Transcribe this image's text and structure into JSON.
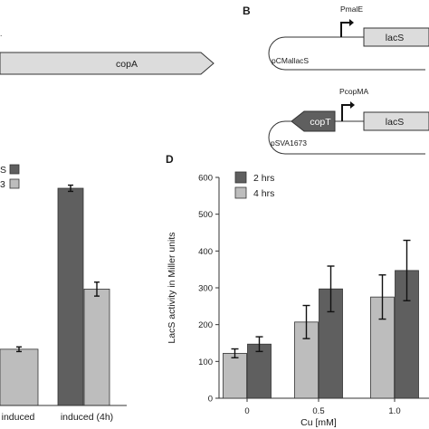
{
  "panels": {
    "a": {
      "gene": "copA"
    },
    "b": {
      "label": "B",
      "construct1": {
        "promoter": "PmalE",
        "gene": "lacS",
        "plasmid": "pCMallacS"
      },
      "construct2": {
        "promoter": "PcopMA",
        "gene_left": "copT",
        "gene_right": "lacS",
        "plasmid": "pSVA1673"
      }
    },
    "c": {
      "legend": [
        "S",
        "3"
      ],
      "categories": [
        "induced",
        "induced (4h)"
      ]
    },
    "d": {
      "label": "D"
    }
  },
  "colors": {
    "dark": "#5f5f5f",
    "light": "#bdbdbd",
    "arrow_fill": "#dcdcdc"
  },
  "chart_data": [
    {
      "panel": "C",
      "type": "bar",
      "categories": [
        "induced",
        "induced (4h)"
      ],
      "series": [
        {
          "name": "S",
          "values": [
            null,
            560
          ]
        },
        {
          "name": "3",
          "values": [
            145,
            300
          ]
        }
      ]
    },
    {
      "panel": "D",
      "type": "bar",
      "categories": [
        "0",
        "0.5",
        "1.0"
      ],
      "xlabel": "Cu [mM]",
      "ylabel": "LacS activity in Miller units",
      "ylim": [
        0,
        600
      ],
      "yticks": [
        "0",
        "100",
        "200",
        "300",
        "400",
        "500",
        "600"
      ],
      "legend": [
        "2 hrs",
        "4 hrs"
      ],
      "series": [
        {
          "name": "4 hrs",
          "values": [
            122,
            207,
            275
          ],
          "errors": [
            12,
            45,
            60
          ]
        },
        {
          "name": "2 hrs",
          "values": [
            147,
            297,
            347
          ],
          "errors": [
            20,
            62,
            82
          ]
        }
      ]
    }
  ]
}
